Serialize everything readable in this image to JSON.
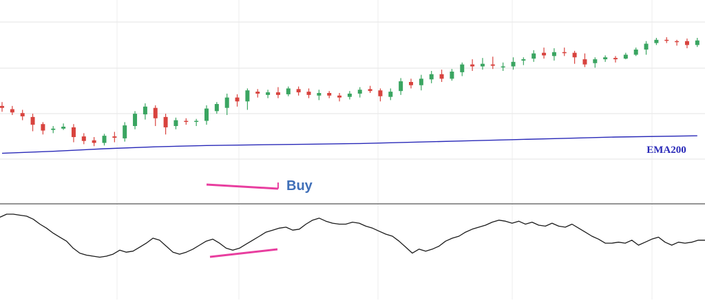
{
  "chart_data": [
    {
      "panel": "price",
      "type": "candlestick",
      "grid": true,
      "colors": {
        "up": "#3aa561",
        "down": "#d8433e",
        "ema": "#2929b8",
        "marker": "#e83e9f",
        "buy_label": "#3f6fb8"
      },
      "ema_label": "EMA200",
      "signal_label": "Buy",
      "candles": [
        [
          151,
          148,
          142,
          157
        ],
        [
          146,
          141,
          137,
          151
        ],
        [
          140,
          135,
          129,
          145
        ],
        [
          134,
          122,
          112,
          139
        ],
        [
          123,
          113,
          107,
          126
        ],
        [
          114,
          116,
          109,
          120
        ],
        [
          116,
          119,
          114,
          124
        ],
        [
          118,
          103,
          95,
          123
        ],
        [
          104,
          97,
          92,
          109
        ],
        [
          98,
          94,
          89,
          103
        ],
        [
          94,
          105,
          90,
          108
        ],
        [
          104,
          102,
          95,
          111
        ],
        [
          101,
          121,
          96,
          126
        ],
        [
          120,
          139,
          115,
          143
        ],
        [
          138,
          150,
          130,
          155
        ],
        [
          148,
          132,
          120,
          152
        ],
        [
          134,
          118,
          107,
          139
        ],
        [
          120,
          129,
          115,
          133
        ],
        [
          128,
          127,
          122,
          132
        ],
        [
          127,
          128,
          120,
          131
        ],
        [
          128,
          147,
          122,
          152
        ],
        [
          143,
          154,
          139,
          157
        ],
        [
          148,
          164,
          137,
          170
        ],
        [
          164,
          158,
          150,
          169
        ],
        [
          158,
          175,
          145,
          178
        ],
        [
          173,
          170,
          164,
          177
        ],
        [
          168,
          172,
          163,
          176
        ],
        [
          172,
          168,
          163,
          180
        ],
        [
          169,
          178,
          166,
          181
        ],
        [
          177,
          172,
          167,
          181
        ],
        [
          173,
          168,
          163,
          178
        ],
        [
          167,
          171,
          160,
          176
        ],
        [
          171,
          167,
          163,
          174
        ],
        [
          167,
          164,
          158,
          171
        ],
        [
          165,
          170,
          161,
          174
        ],
        [
          170,
          176,
          164,
          180
        ],
        [
          177,
          174,
          171,
          182
        ],
        [
          175,
          166,
          158,
          178
        ],
        [
          165,
          173,
          160,
          178
        ],
        [
          174,
          189,
          168,
          194
        ],
        [
          188,
          183,
          178,
          193
        ],
        [
          183,
          193,
          175,
          199
        ],
        [
          192,
          200,
          186,
          205
        ],
        [
          200,
          193,
          188,
          207
        ],
        [
          193,
          204,
          190,
          208
        ],
        [
          203,
          215,
          197,
          218
        ],
        [
          215,
          212,
          205,
          223
        ],
        [
          212,
          216,
          207,
          225
        ],
        [
          215,
          213,
          208,
          227
        ],
        [
          212,
          212,
          205,
          218
        ],
        [
          212,
          219,
          207,
          226
        ],
        [
          221,
          223,
          214,
          226
        ],
        [
          224,
          232,
          219,
          237
        ],
        [
          233,
          229,
          224,
          241
        ],
        [
          228,
          234,
          221,
          240
        ],
        [
          234,
          233,
          228,
          241
        ],
        [
          233,
          226,
          216,
          236
        ],
        [
          223,
          215,
          211,
          232
        ],
        [
          217,
          223,
          210,
          226
        ],
        [
          223,
          226,
          219,
          229
        ],
        [
          225,
          223,
          218,
          228
        ],
        [
          224,
          230,
          223,
          233
        ],
        [
          230,
          238,
          228,
          241
        ],
        [
          238,
          247,
          230,
          251
        ],
        [
          248,
          253,
          245,
          256
        ],
        [
          253,
          252,
          248,
          257
        ],
        [
          251,
          250,
          244,
          253
        ],
        [
          251,
          245,
          240,
          255
        ],
        [
          245,
          252,
          242,
          256
        ]
      ],
      "ema200": [
        [
          0,
          78
        ],
        [
          5,
          81
        ],
        [
          10,
          85
        ],
        [
          15,
          88
        ],
        [
          20,
          90
        ],
        [
          25,
          91
        ],
        [
          30,
          92
        ],
        [
          35,
          93
        ],
        [
          40,
          95
        ],
        [
          45,
          97
        ],
        [
          50,
          99
        ],
        [
          55,
          101
        ],
        [
          60,
          103
        ],
        [
          68,
          105
        ]
      ]
    },
    {
      "panel": "oscillator",
      "type": "line",
      "colors": {
        "line": "#1a1a1a",
        "marker": "#e83e9f"
      },
      "values": [
        86,
        89,
        89,
        88,
        87,
        84,
        79,
        75,
        70,
        66,
        62,
        55,
        50,
        48,
        47,
        46,
        47,
        49,
        53,
        51,
        52,
        56,
        60,
        65,
        63,
        57,
        51,
        49,
        51,
        54,
        58,
        62,
        64,
        60,
        55,
        53,
        55,
        59,
        63,
        67,
        71,
        73,
        75,
        76,
        73,
        74,
        79,
        83,
        85,
        82,
        80,
        79,
        79,
        81,
        80,
        77,
        75,
        72,
        69,
        67,
        62,
        56,
        50,
        54,
        52,
        54,
        57,
        62,
        65,
        67,
        71,
        74,
        76,
        78,
        81,
        83,
        82,
        80,
        82,
        79,
        81,
        78,
        77,
        80,
        77,
        76,
        79,
        75,
        71,
        67,
        64,
        60,
        60,
        61,
        60,
        63,
        58,
        61,
        64,
        66,
        61,
        58,
        61,
        60,
        61,
        63,
        63
      ]
    }
  ]
}
